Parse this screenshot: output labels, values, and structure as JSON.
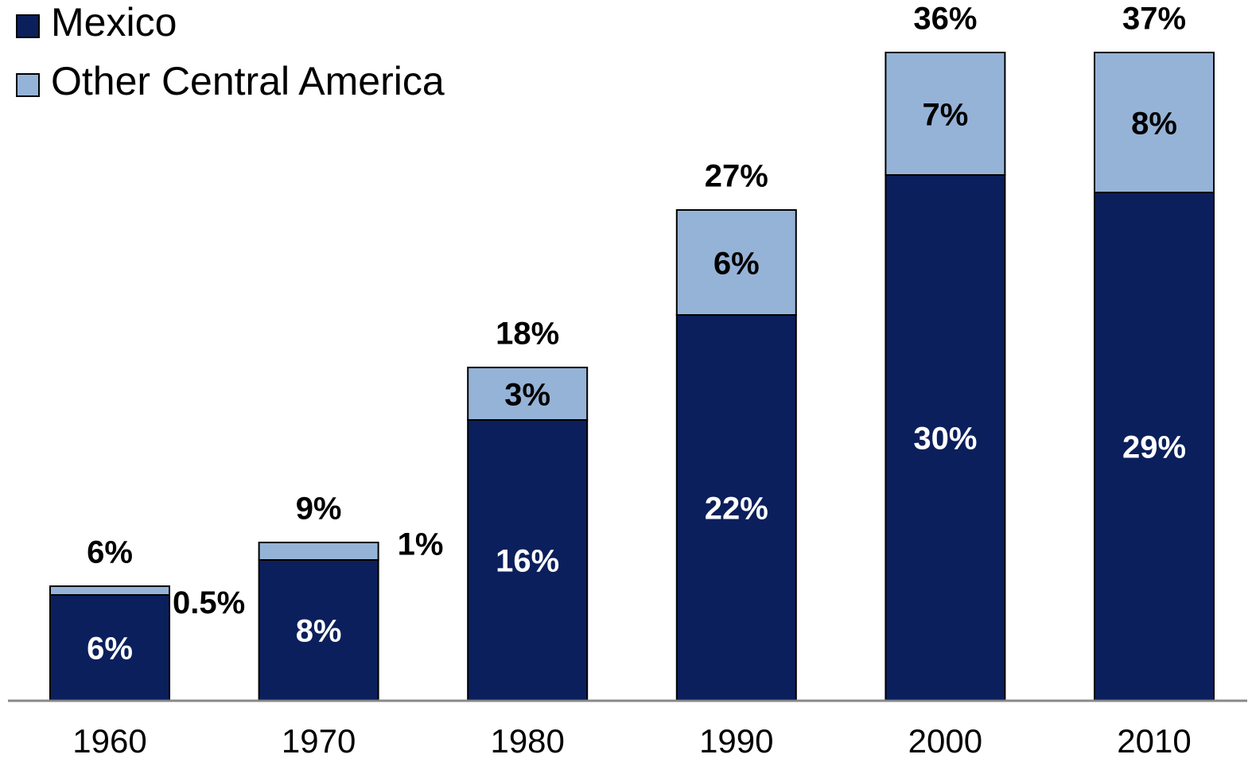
{
  "chart_data": {
    "type": "stacked_bar",
    "categories": [
      "1960",
      "1970",
      "1980",
      "1990",
      "2000",
      "2010"
    ],
    "series": [
      {
        "name": "Mexico",
        "color": "#0b1f5c",
        "values": [
          6,
          8,
          16,
          22,
          30,
          29
        ],
        "value_labels": [
          "6%",
          "8%",
          "16%",
          "22%",
          "30%",
          "29%"
        ]
      },
      {
        "name": "Other Central America",
        "color": "#95b3d7",
        "values": [
          0.5,
          1,
          3,
          6,
          7,
          8
        ],
        "value_labels": [
          "0.5%",
          "1%",
          "3%",
          "6%",
          "7%",
          "8%"
        ]
      }
    ],
    "totals": {
      "values": [
        6,
        9,
        18,
        27,
        36,
        37
      ],
      "value_labels": [
        "6%",
        "9%",
        "18%",
        "27%",
        "36%",
        "37%"
      ]
    },
    "legend": "top-left"
  }
}
